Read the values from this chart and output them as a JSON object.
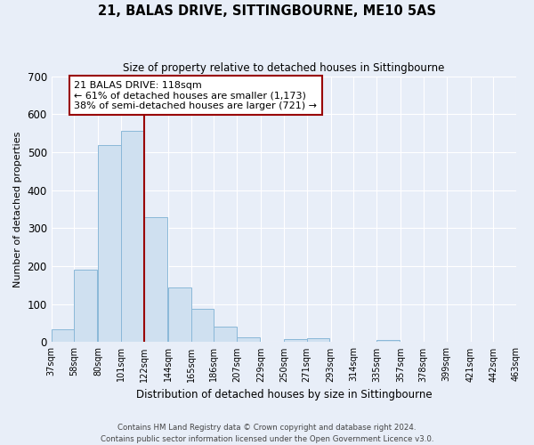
{
  "title": "21, BALAS DRIVE, SITTINGBOURNE, ME10 5AS",
  "subtitle": "Size of property relative to detached houses in Sittingbourne",
  "xlabel": "Distribution of detached houses by size in Sittingbourne",
  "ylabel": "Number of detached properties",
  "footer1": "Contains HM Land Registry data © Crown copyright and database right 2024.",
  "footer2": "Contains public sector information licensed under the Open Government Licence v3.0.",
  "bins": [
    37,
    58,
    80,
    101,
    122,
    144,
    165,
    186,
    207,
    229,
    250,
    271,
    293,
    314,
    335,
    357,
    378,
    399,
    421,
    442,
    463
  ],
  "counts": [
    33,
    190,
    519,
    557,
    329,
    144,
    87,
    40,
    13,
    0,
    9,
    10,
    0,
    0,
    6,
    0,
    0,
    0,
    0,
    0
  ],
  "bar_color": "#cfe0f0",
  "bar_edge_color": "#8ab8d8",
  "vline_x": 122,
  "vline_color": "#990000",
  "annotation_title": "21 BALAS DRIVE: 118sqm",
  "annotation_line1": "← 61% of detached houses are smaller (1,173)",
  "annotation_line2": "38% of semi-detached houses are larger (721) →",
  "annotation_box_edgecolor": "#990000",
  "ylim": [
    0,
    700
  ],
  "yticks": [
    0,
    100,
    200,
    300,
    400,
    500,
    600,
    700
  ],
  "bg_color": "#e8eef8",
  "plot_bg_color": "#e8eef8",
  "grid_color": "#ffffff"
}
